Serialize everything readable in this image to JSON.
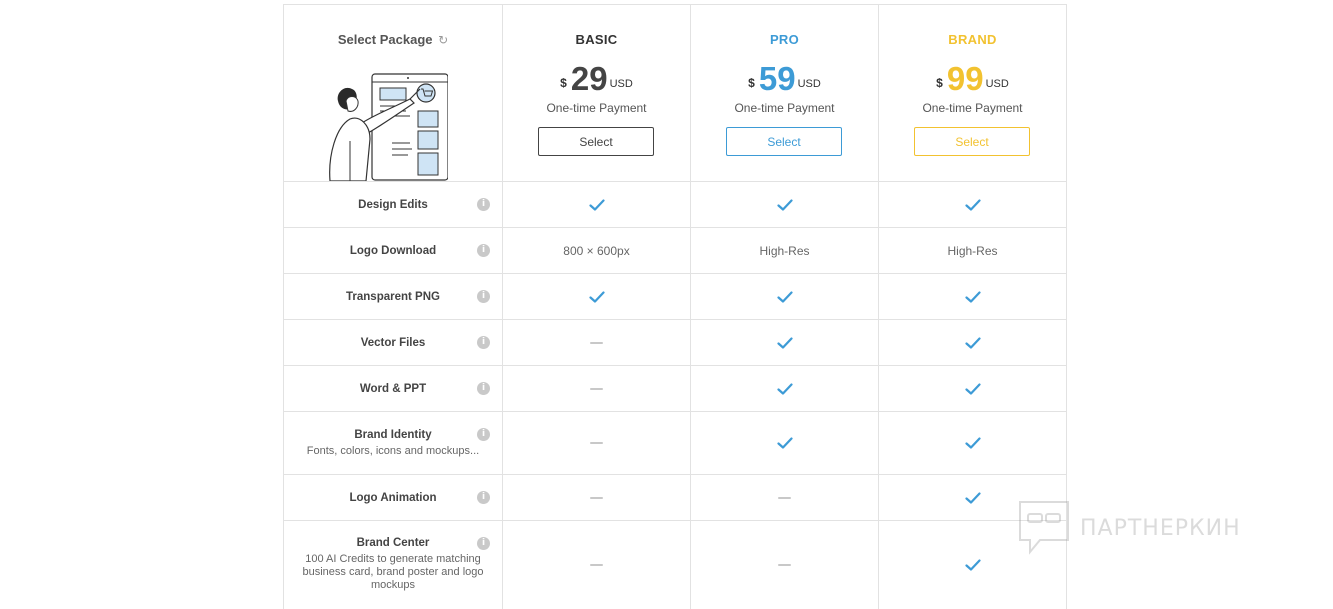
{
  "header": {
    "select_label": "Select Package",
    "refresh_icon": "refresh-icon"
  },
  "plans": [
    {
      "name": "BASIC",
      "currency": "$",
      "amount": "29",
      "unit": "USD",
      "note": "One-time Payment",
      "button": "Select",
      "color": "#444444",
      "button_color": "#444444"
    },
    {
      "name": "PRO",
      "currency": "$",
      "amount": "59",
      "unit": "USD",
      "note": "One-time Payment",
      "button": "Select",
      "color": "#3d9bd6",
      "button_color": "#3d9bd6"
    },
    {
      "name": "BRAND",
      "currency": "$",
      "amount": "99",
      "unit": "USD",
      "note": "One-time Payment",
      "button": "Select",
      "color": "#f2c230",
      "button_color": "#f2c230"
    }
  ],
  "features": [
    {
      "name": "Design Edits",
      "desc": "",
      "values": [
        "check",
        "check",
        "check"
      ]
    },
    {
      "name": "Logo Download",
      "desc": "",
      "values": [
        "800 × 600px",
        "High-Res",
        "High-Res"
      ]
    },
    {
      "name": "Transparent PNG",
      "desc": "",
      "values": [
        "check",
        "check",
        "check"
      ]
    },
    {
      "name": "Vector Files",
      "desc": "",
      "values": [
        "dash",
        "check",
        "check"
      ]
    },
    {
      "name": "Word & PPT",
      "desc": "",
      "values": [
        "dash",
        "check",
        "check"
      ]
    },
    {
      "name": "Brand Identity",
      "desc": "Fonts, colors, icons and mockups...",
      "values": [
        "dash",
        "check",
        "check"
      ]
    },
    {
      "name": "Logo Animation",
      "desc": "",
      "values": [
        "dash",
        "dash",
        "check"
      ]
    },
    {
      "name": "Brand Center",
      "desc": "100 AI Credits to generate matching business card, brand poster and logo mockups",
      "values": [
        "dash",
        "dash",
        "check"
      ]
    }
  ],
  "colors": {
    "check": "#3d9bd6",
    "dash": "#c8c8c8",
    "border": "#e2e2e2"
  },
  "watermark": {
    "text": "ПАРТНЕРКИН"
  }
}
